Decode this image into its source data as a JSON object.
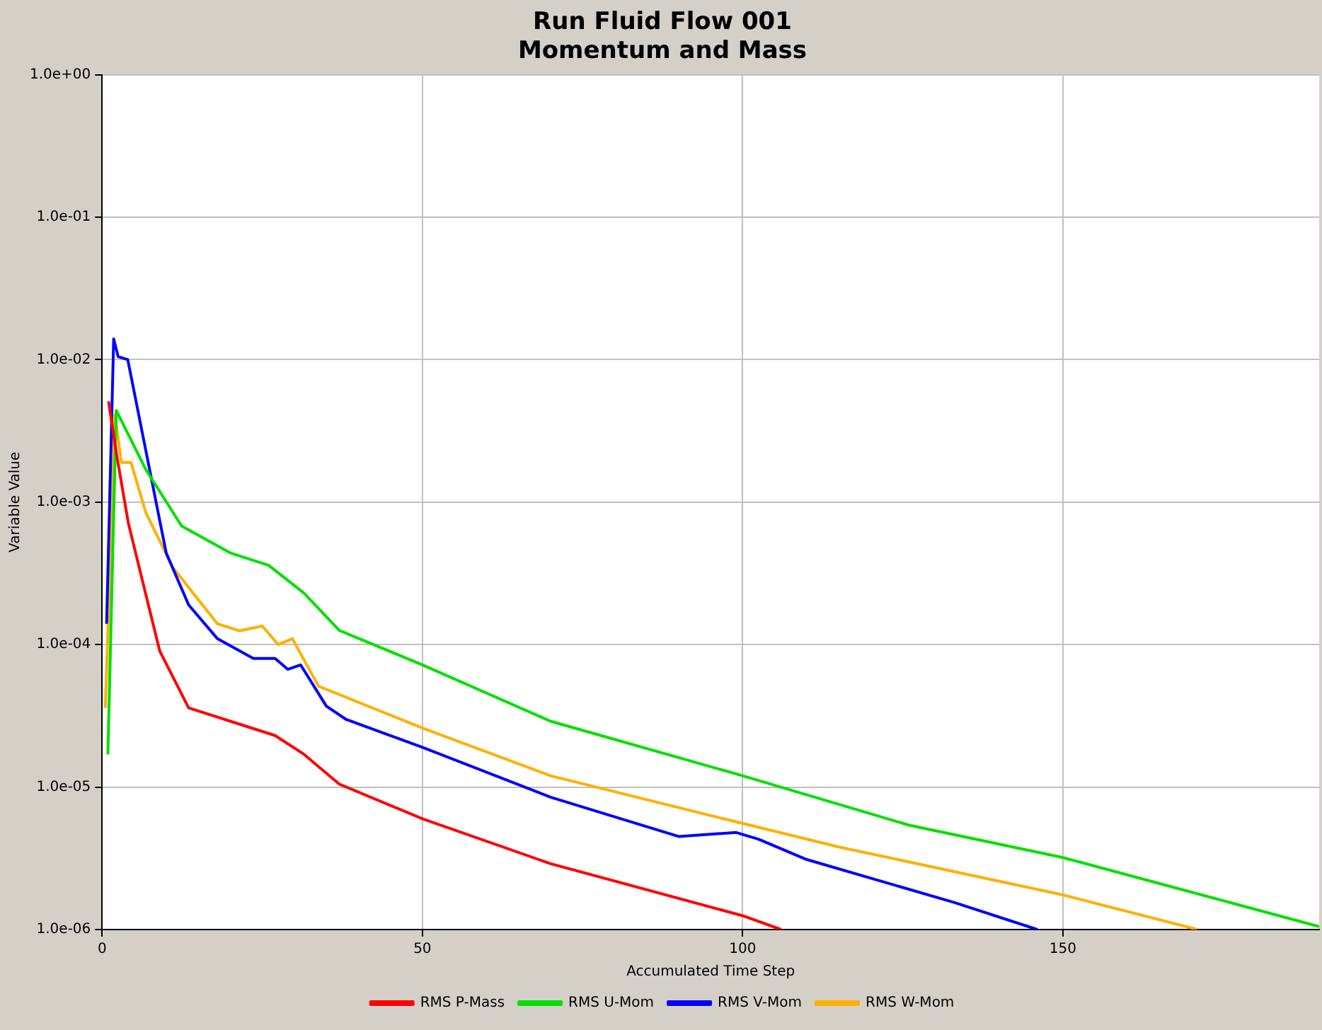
{
  "chart_data": {
    "type": "line",
    "title": "Run Fluid Flow 001",
    "subtitle": "Momentum and Mass",
    "xlabel": "Accumulated Time Step",
    "ylabel": "Variable Value",
    "log": "y",
    "grid": true,
    "legend": "bottom",
    "marker": "none",
    "line_style": "solid",
    "xlim": [
      0,
      190
    ],
    "xticks": [
      0,
      50,
      100,
      150
    ],
    "ylim": [
      1e-06,
      1
    ],
    "yticks": [
      {
        "value": 1e-06,
        "label": "1.0e-06"
      },
      {
        "value": 1e-05,
        "label": "1.0e-05"
      },
      {
        "value": 0.0001,
        "label": "1.0e-04"
      },
      {
        "value": 0.001,
        "label": "1.0e-03"
      },
      {
        "value": 0.01,
        "label": "1.0e-02"
      },
      {
        "value": 0.1,
        "label": "1.0e-01"
      },
      {
        "value": 1,
        "label": "1.0e+00"
      }
    ],
    "series": [
      {
        "name": "RMS P-Mass",
        "color": "#ff0000",
        "x": [
          1,
          2.3,
          4.1,
          6.3,
          9,
          13.5,
          20,
          27,
          31.5,
          37,
          50,
          70,
          100,
          106
        ],
        "values": [
          0.0051,
          0.0021,
          0.00071,
          0.00028,
          9e-05,
          3.6e-05,
          2.9e-05,
          2.3e-05,
          1.7e-05,
          1.05e-05,
          6e-06,
          2.9e-06,
          1.25e-06,
          1e-06
        ]
      },
      {
        "name": "RMS U-Mom",
        "color": "#00e000",
        "x": [
          0.9,
          2.2,
          6.8,
          12.4,
          20,
          26,
          31.5,
          37,
          50,
          70,
          100,
          126,
          150,
          190
        ],
        "values": [
          1.7e-05,
          0.0044,
          0.0017,
          0.00068,
          0.00044,
          0.00036,
          0.00023,
          0.000126,
          7.2e-05,
          2.9e-05,
          1.2e-05,
          5.4e-06,
          3.2e-06,
          1.05e-06
        ]
      },
      {
        "name": "RMS V-Mom",
        "color": "#0000ff",
        "x": [
          0.7,
          1.8,
          2.5,
          4,
          10,
          13.5,
          18,
          23.6,
          27,
          29,
          31,
          35,
          38,
          50,
          70,
          90,
          99,
          102.5,
          110,
          133,
          146
        ],
        "values": [
          0.00014,
          0.014,
          0.0105,
          0.01,
          0.00044,
          0.00019,
          0.00011,
          8e-05,
          8e-05,
          6.7e-05,
          7.2e-05,
          3.7e-05,
          3e-05,
          1.9e-05,
          8.5e-06,
          4.5e-06,
          4.8e-06,
          4.3e-06,
          3.1e-06,
          1.55e-06,
          1e-06
        ]
      },
      {
        "name": "RMS W-Mom",
        "color": "#ffb000",
        "x": [
          0.5,
          2,
          3,
          4.5,
          6.8,
          11,
          18,
          21.4,
          25,
          27.5,
          29.7,
          33.8,
          50,
          70,
          97,
          115,
          150,
          171
        ],
        "values": [
          3.6e-05,
          0.0041,
          0.0019,
          0.0019,
          0.00085,
          0.00035,
          0.00014,
          0.000125,
          0.000135,
          0.0001,
          0.00011,
          5.1e-05,
          2.6e-05,
          1.2e-05,
          6e-06,
          3.8e-06,
          1.75e-06,
          1e-06
        ]
      }
    ]
  }
}
